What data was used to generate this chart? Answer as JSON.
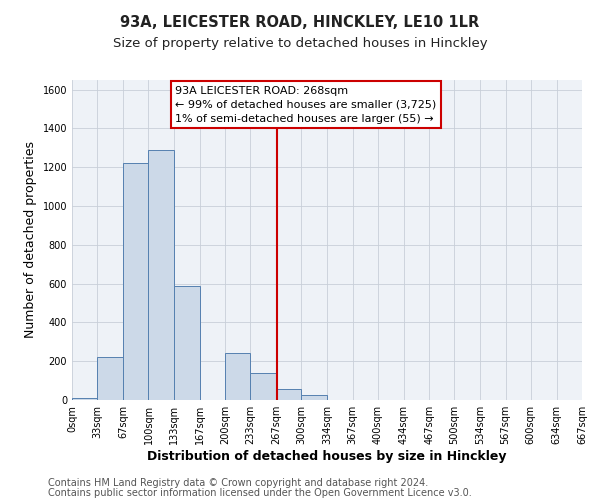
{
  "title": "93A, LEICESTER ROAD, HINCKLEY, LE10 1LR",
  "subtitle": "Size of property relative to detached houses in Hinckley",
  "xlabel": "Distribution of detached houses by size in Hinckley",
  "ylabel": "Number of detached properties",
  "bin_edges": [
    0,
    33,
    67,
    100,
    133,
    167,
    200,
    233,
    267,
    300,
    334,
    367,
    400,
    434,
    467,
    500,
    534,
    567,
    600,
    634,
    667
  ],
  "bar_heights": [
    10,
    220,
    1220,
    1290,
    590,
    0,
    240,
    140,
    55,
    25,
    0,
    0,
    0,
    0,
    0,
    0,
    0,
    0,
    0,
    0
  ],
  "bar_color": "#ccd9e8",
  "bar_edge_color": "#5580b0",
  "vline_x": 268,
  "vline_color": "#cc0000",
  "annotation_title": "93A LEICESTER ROAD: 268sqm",
  "annotation_line1": "← 99% of detached houses are smaller (3,725)",
  "annotation_line2": "1% of semi-detached houses are larger (55) →",
  "annotation_box_edge": "#cc0000",
  "ylim": [
    0,
    1650
  ],
  "yticks": [
    0,
    200,
    400,
    600,
    800,
    1000,
    1200,
    1400,
    1600
  ],
  "xtick_labels": [
    "0sqm",
    "33sqm",
    "67sqm",
    "100sqm",
    "133sqm",
    "167sqm",
    "200sqm",
    "233sqm",
    "267sqm",
    "300sqm",
    "334sqm",
    "367sqm",
    "400sqm",
    "434sqm",
    "467sqm",
    "500sqm",
    "534sqm",
    "567sqm",
    "600sqm",
    "634sqm",
    "667sqm"
  ],
  "footer1": "Contains HM Land Registry data © Crown copyright and database right 2024.",
  "footer2": "Contains public sector information licensed under the Open Government Licence v3.0.",
  "bg_color": "#ffffff",
  "plot_bg_color": "#eef2f7",
  "grid_color": "#c8cfd8",
  "title_fontsize": 10.5,
  "subtitle_fontsize": 9.5,
  "label_fontsize": 9,
  "tick_fontsize": 7,
  "footer_fontsize": 7,
  "ann_fontsize": 8
}
